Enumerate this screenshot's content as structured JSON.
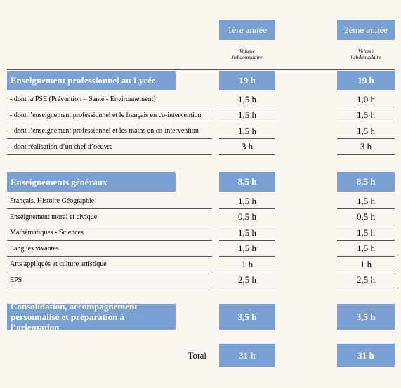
{
  "columns": [
    {
      "label": "1ère année",
      "sublabel": "Volume hebdomadaire"
    },
    {
      "label": "2ème année",
      "sublabel": "Volume hebdomadaire"
    }
  ],
  "sections": [
    {
      "title": "Enseignement professionnel au Lycée",
      "totals": [
        "19 h",
        "19 h"
      ],
      "rows": [
        {
          "label": "- dont la PSE (Prévention – Santé - Environnement)",
          "values": [
            "1,5 h",
            "1,0 h"
          ]
        },
        {
          "label": "- dont l’enseignement professionnel et le français en  co-intervention",
          "values": [
            "1,5 h",
            "1,5 h"
          ]
        },
        {
          "label": "- dont l’enseignement professionnel et les maths en  co-intervention",
          "values": [
            "1,5 h",
            "1,5 h"
          ]
        },
        {
          "label": "- dont réalisation d’un chef d’oeuvre",
          "values": [
            "3 h",
            "3 h"
          ]
        }
      ]
    },
    {
      "title": "Enseignements généraux",
      "totals": [
        "8,5 h",
        "8,5 h"
      ],
      "rows": [
        {
          "label": "Français, Histoire Géographie",
          "values": [
            "1,5 h",
            "1,5 h"
          ]
        },
        {
          "label": "Enseignement moral et civique",
          "values": [
            "0,5 h",
            "0,5 h"
          ]
        },
        {
          "label": "Mathématiques - Sciences",
          "values": [
            "1,5 h",
            "1,5 h"
          ]
        },
        {
          "label": "Langues vivantes",
          "values": [
            "1,5 h",
            "1,5 h"
          ]
        },
        {
          "label": "Arts appliqués et culture artistique",
          "values": [
            "1 h",
            "1 h"
          ]
        },
        {
          "label": "EPS",
          "values": [
            "2,5 h",
            "2,5 h"
          ]
        }
      ]
    },
    {
      "title": "Consolidation, accompagnement personnalisé et préparation à l’orientation",
      "totals": [
        "3,5 h",
        "3,5 h"
      ],
      "rows": []
    }
  ],
  "total": {
    "label": "Total",
    "values": [
      "31 h",
      "31 h"
    ]
  }
}
